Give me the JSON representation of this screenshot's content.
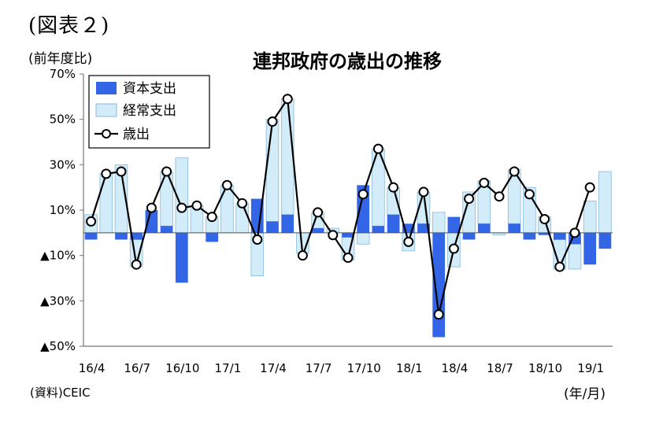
{
  "figure_label": "(図表２)",
  "unit_label": "(前年度比)",
  "source": "(資料)CEIC",
  "x_unit": "(年/月)",
  "colors": {
    "capital": "#3366e6",
    "current": "#d2ecfa",
    "current_edge": "#88b8d8",
    "line": "#000000",
    "axis": "#777777"
  },
  "chart_data": {
    "type": "bar",
    "title": "連邦政府の歳出の推移",
    "ylim": [
      -50,
      70
    ],
    "y_ticks": [
      {
        "value": 70,
        "label": "70%"
      },
      {
        "value": 50,
        "label": "50%"
      },
      {
        "value": 30,
        "label": "30%"
      },
      {
        "value": 10,
        "label": "10%"
      },
      {
        "value": -10,
        "label": "▲10%"
      },
      {
        "value": -30,
        "label": "▲30%"
      },
      {
        "value": -50,
        "label": "▲50%"
      }
    ],
    "x_tick_labels": [
      {
        "index": 0,
        "label": "16/4"
      },
      {
        "index": 3,
        "label": "16/7"
      },
      {
        "index": 6,
        "label": "16/10"
      },
      {
        "index": 9,
        "label": "17/1"
      },
      {
        "index": 12,
        "label": "17/4"
      },
      {
        "index": 15,
        "label": "17/7"
      },
      {
        "index": 18,
        "label": "17/10"
      },
      {
        "index": 21,
        "label": "18/1"
      },
      {
        "index": 24,
        "label": "18/4"
      },
      {
        "index": 27,
        "label": "18/7"
      },
      {
        "index": 30,
        "label": "18/10"
      },
      {
        "index": 33,
        "label": "19/1"
      }
    ],
    "categories": [
      "16/4",
      "16/5",
      "16/6",
      "16/7",
      "16/8",
      "16/9",
      "16/10",
      "16/11",
      "16/12",
      "17/1",
      "17/2",
      "17/3",
      "17/4",
      "17/5",
      "17/6",
      "17/7",
      "17/8",
      "17/9",
      "17/10",
      "17/11",
      "17/12",
      "18/1",
      "18/2",
      "18/3",
      "18/4",
      "18/5",
      "18/6",
      "18/7",
      "18/8",
      "18/9",
      "18/10",
      "18/11",
      "18/12",
      "19/1",
      "19/2"
    ],
    "legend": [
      {
        "key": "capital",
        "label": "資本支出"
      },
      {
        "key": "current",
        "label": "経常支出"
      },
      {
        "key": "total",
        "label": "歳出"
      }
    ],
    "series": [
      {
        "name": "資本支出",
        "type": "bar",
        "values": [
          -3,
          0,
          -3,
          -3,
          10,
          3,
          -22,
          0,
          -4,
          0,
          0,
          15,
          5,
          8,
          0,
          2,
          0,
          -2,
          21,
          3,
          8,
          4,
          4,
          -46,
          7,
          -3,
          4,
          0,
          4,
          -3,
          -1,
          -3,
          -5,
          -14,
          -7
        ]
      },
      {
        "name": "経常支出",
        "type": "bar",
        "values": [
          8,
          26,
          30,
          -12,
          0,
          24,
          33,
          12,
          7,
          21,
          13,
          -19,
          45,
          51,
          -9,
          7,
          2,
          -10,
          -5,
          34,
          12,
          -8,
          14,
          9,
          -15,
          18,
          19,
          -1,
          24,
          20,
          7,
          -13,
          -11,
          14,
          27
        ]
      },
      {
        "name": "歳出",
        "type": "line",
        "values": [
          5,
          26,
          27,
          -14,
          11,
          27,
          11,
          12,
          7,
          21,
          13,
          -3,
          49,
          59,
          -10,
          9,
          -1,
          -11,
          17,
          37,
          20,
          -4,
          18,
          -36,
          -7,
          15,
          22,
          16,
          27,
          17,
          6,
          -15,
          0,
          20,
          null
        ]
      }
    ]
  }
}
